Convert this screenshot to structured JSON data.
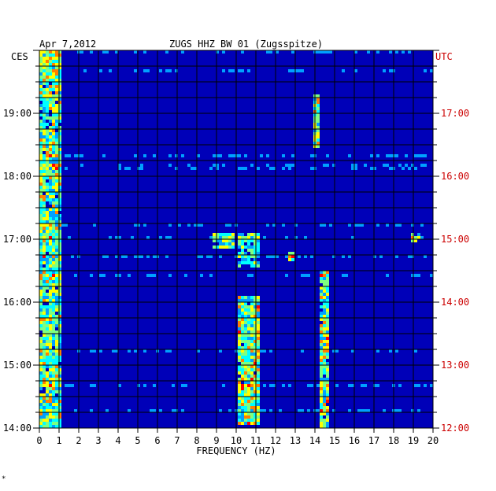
{
  "chart_data": {
    "type": "heatmap",
    "title_date": "Apr 7,2012",
    "title_station": "ZUGS HHZ BW 01 (Zugsspitze)",
    "left_axis_label": "CES",
    "right_axis_label": "UTC",
    "xlabel": "FREQUENCY (HZ)",
    "xlim": [
      0,
      20
    ],
    "x_ticks": [
      "0",
      "1",
      "2",
      "3",
      "4",
      "5",
      "6",
      "7",
      "8",
      "9",
      "10",
      "11",
      "12",
      "13",
      "14",
      "15",
      "16",
      "17",
      "18",
      "19",
      "20"
    ],
    "left_time_ticks": [
      {
        "label": "14:00",
        "hour": 14
      },
      {
        "label": "15:00",
        "hour": 15
      },
      {
        "label": "16:00",
        "hour": 16
      },
      {
        "label": "17:00",
        "hour": 17
      },
      {
        "label": "18:00",
        "hour": 18
      },
      {
        "label": "19:00",
        "hour": 19
      }
    ],
    "right_time_ticks": [
      {
        "label": "12:00",
        "hour": 14
      },
      {
        "label": "13:00",
        "hour": 15
      },
      {
        "label": "14:00",
        "hour": 16
      },
      {
        "label": "15:00",
        "hour": 17
      },
      {
        "label": "16:00",
        "hour": 18
      },
      {
        "label": "17:00",
        "hour": 19
      }
    ],
    "time_range_local": [
      14,
      20
    ],
    "colorscale": [
      "#00008b",
      "#0000cd",
      "#0033ff",
      "#00a0ff",
      "#00ffff",
      "#7fff7f",
      "#ffff00",
      "#ff8000",
      "#ff0000"
    ],
    "background_color": "#0000b8",
    "grid": true,
    "energy_features": [
      {
        "freq_range": [
          0,
          1.0
        ],
        "time_range": [
          14,
          20
        ],
        "level": 0.55
      },
      {
        "freq_range": [
          10,
          11.2
        ],
        "time_range": [
          14.1,
          16.1
        ],
        "level": 0.6
      },
      {
        "freq_range": [
          10,
          11.2
        ],
        "time_range": [
          16.6,
          17.1
        ],
        "level": 0.45
      },
      {
        "freq_range": [
          14.1,
          14.6
        ],
        "time_range": [
          14.0,
          16.5
        ],
        "level": 0.6
      },
      {
        "freq_range": [
          13.8,
          14.1
        ],
        "time_range": [
          18.5,
          19.3
        ],
        "level": 0.55
      },
      {
        "freq_range": [
          8.8,
          9.8
        ],
        "time_range": [
          16.9,
          17.1
        ],
        "level": 0.5
      },
      {
        "freq_range": [
          18.8,
          19.2
        ],
        "time_range": [
          17.0,
          17.1
        ],
        "level": 0.6
      },
      {
        "freq_range": [
          12.6,
          12.9
        ],
        "time_range": [
          16.7,
          16.8
        ],
        "level": 0.6
      }
    ]
  },
  "footer_mark": "*"
}
